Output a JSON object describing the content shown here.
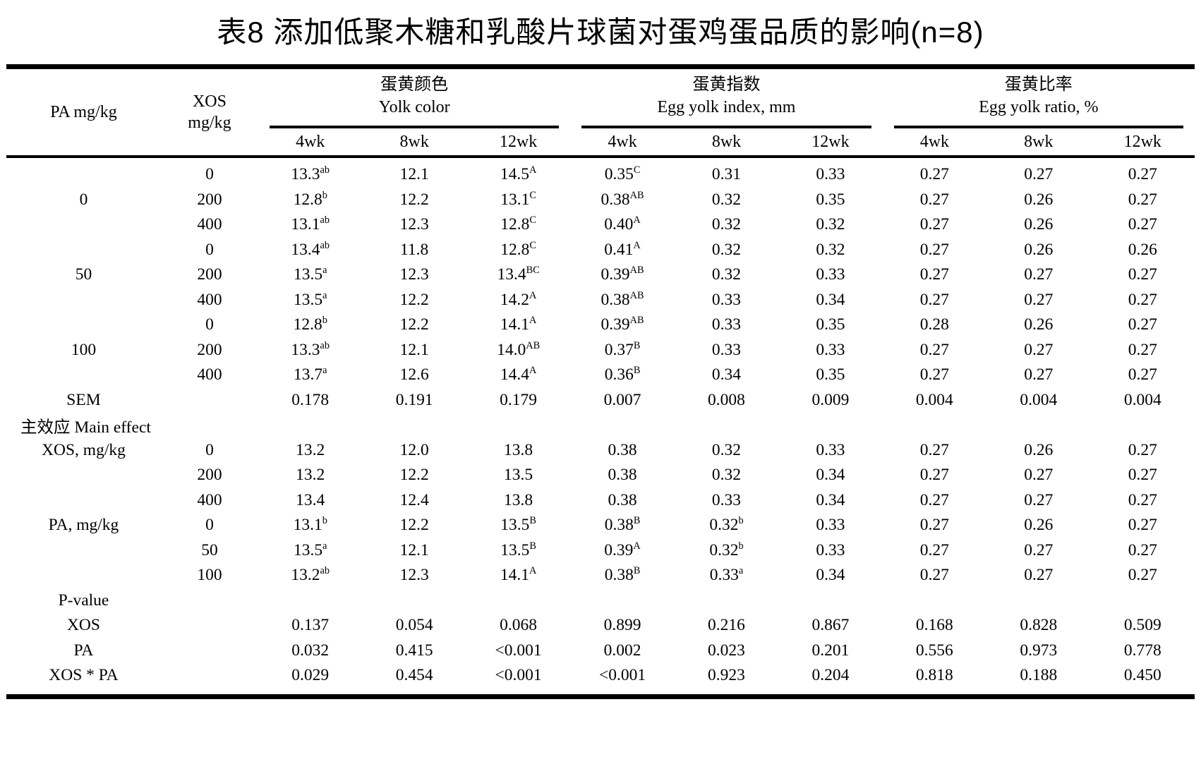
{
  "title": "表8 添加低聚木糖和乳酸片球菌对蛋鸡蛋品质的影响(n=8)",
  "header": {
    "col1": "PA mg/kg",
    "col2_line1": "XOS",
    "col2_line2": "mg/kg",
    "groups": [
      {
        "zh": "蛋黄颜色",
        "en": "Yolk color"
      },
      {
        "zh": "蛋黄指数",
        "en": "Egg yolk index, mm"
      },
      {
        "zh": "蛋黄比率",
        "en": "Egg yolk ratio, %"
      }
    ],
    "weeks": [
      "4wk",
      "8wk",
      "12wk"
    ]
  },
  "rows": [
    {
      "l1": "",
      "l2": "0",
      "v": [
        "13.3^ab",
        "12.1",
        "14.5^A",
        "0.35^C",
        "0.31",
        "0.33",
        "0.27",
        "0.27",
        "0.27"
      ]
    },
    {
      "l1": "0",
      "l2": "200",
      "v": [
        "12.8^b",
        "12.2",
        "13.1^C",
        "0.38^AB",
        "0.32",
        "0.35",
        "0.27",
        "0.26",
        "0.27"
      ]
    },
    {
      "l1": "",
      "l2": "400",
      "v": [
        "13.1^ab",
        "12.3",
        "12.8^C",
        "0.40^A",
        "0.32",
        "0.32",
        "0.27",
        "0.26",
        "0.27"
      ]
    },
    {
      "l1": "",
      "l2": "0",
      "v": [
        "13.4^ab",
        "11.8",
        "12.8^C",
        "0.41^A",
        "0.32",
        "0.32",
        "0.27",
        "0.26",
        "0.26"
      ]
    },
    {
      "l1": "50",
      "l2": "200",
      "v": [
        "13.5^a",
        "12.3",
        "13.4^BC",
        "0.39^AB",
        "0.32",
        "0.33",
        "0.27",
        "0.27",
        "0.27"
      ]
    },
    {
      "l1": "",
      "l2": "400",
      "v": [
        "13.5^a",
        "12.2",
        "14.2^A",
        "0.38^AB",
        "0.33",
        "0.34",
        "0.27",
        "0.27",
        "0.27"
      ]
    },
    {
      "l1": "",
      "l2": "0",
      "v": [
        "12.8^b",
        "12.2",
        "14.1^A",
        "0.39^AB",
        "0.33",
        "0.35",
        "0.28",
        "0.26",
        "0.27"
      ]
    },
    {
      "l1": "100",
      "l2": "200",
      "v": [
        "13.3^ab",
        "12.1",
        "14.0^AB",
        "0.37^B",
        "0.33",
        "0.33",
        "0.27",
        "0.27",
        "0.27"
      ]
    },
    {
      "l1": "",
      "l2": "400",
      "v": [
        "13.7^a",
        "12.6",
        "14.4^A",
        "0.36^B",
        "0.34",
        "0.35",
        "0.27",
        "0.27",
        "0.27"
      ]
    },
    {
      "l1": "SEM",
      "l2": "",
      "v": [
        "0.178",
        "0.191",
        "0.179",
        "0.007",
        "0.008",
        "0.009",
        "0.004",
        "0.004",
        "0.004"
      ]
    },
    {
      "l1": "主效应 Main effect",
      "section": true
    },
    {
      "l1": "XOS, mg/kg",
      "l2": "0",
      "v": [
        "13.2",
        "12.0",
        "13.8",
        "0.38",
        "0.32",
        "0.33",
        "0.27",
        "0.26",
        "0.27"
      ]
    },
    {
      "l1": "",
      "l2": "200",
      "v": [
        "13.2",
        "12.2",
        "13.5",
        "0.38",
        "0.32",
        "0.34",
        "0.27",
        "0.27",
        "0.27"
      ]
    },
    {
      "l1": "",
      "l2": "400",
      "v": [
        "13.4",
        "12.4",
        "13.8",
        "0.38",
        "0.33",
        "0.34",
        "0.27",
        "0.27",
        "0.27"
      ]
    },
    {
      "l1": "PA, mg/kg",
      "l2": "0",
      "v": [
        "13.1^b",
        "12.2",
        "13.5^B",
        "0.38^B",
        "0.32^b",
        "0.33",
        "0.27",
        "0.26",
        "0.27"
      ]
    },
    {
      "l1": "",
      "l2": "50",
      "v": [
        "13.5^a",
        "12.1",
        "13.5^B",
        "0.39^A",
        "0.32^b",
        "0.33",
        "0.27",
        "0.27",
        "0.27"
      ]
    },
    {
      "l1": "",
      "l2": "100",
      "v": [
        "13.2^ab",
        "12.3",
        "14.1^A",
        "0.38^B",
        "0.33^a",
        "0.34",
        "0.27",
        "0.27",
        "0.27"
      ]
    },
    {
      "l1": "P-value",
      "l2": ""
    },
    {
      "l1": "XOS",
      "l2": "",
      "v": [
        "0.137",
        "0.054",
        "0.068",
        "0.899",
        "0.216",
        "0.867",
        "0.168",
        "0.828",
        "0.509"
      ]
    },
    {
      "l1": "PA",
      "l2": "",
      "v": [
        "0.032",
        "0.415",
        "<0.001",
        "0.002",
        "0.023",
        "0.201",
        "0.556",
        "0.973",
        "0.778"
      ]
    },
    {
      "l1": "XOS * PA",
      "l2": "",
      "v": [
        "0.029",
        "0.454",
        "<0.001",
        "<0.001",
        "0.923",
        "0.204",
        "0.818",
        "0.188",
        "0.450"
      ]
    }
  ]
}
